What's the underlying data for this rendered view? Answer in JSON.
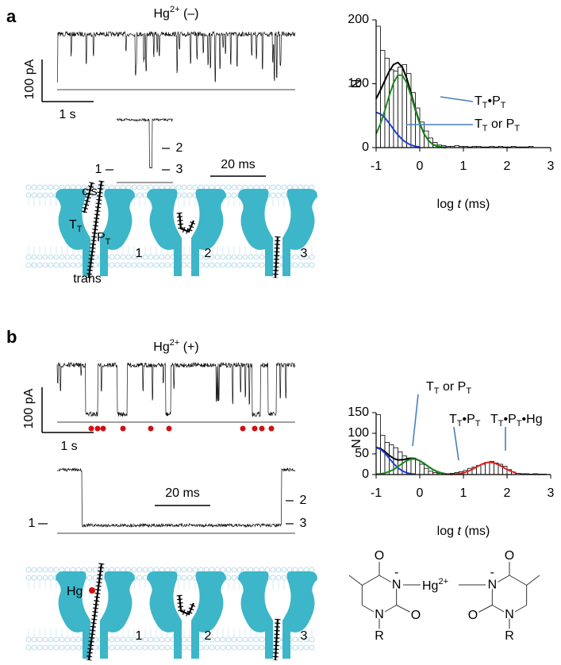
{
  "figure": {
    "panels": [
      {
        "label": "a",
        "title": {
          "parts": [
            "Hg",
            "2+",
            " (–)"
          ],
          "script": "sup"
        },
        "scale_current": "100 pA",
        "scale_time": "1 s",
        "zoom_scale": "20 ms",
        "levels": [
          "1",
          "2",
          "3"
        ],
        "pore_states": [
          "1",
          "2",
          "3"
        ],
        "cis": "cis",
        "trans": "trans",
        "tt": {
          "parts": [
            "T",
            "T"
          ],
          "script": "sub"
        },
        "pt": {
          "parts": [
            "P",
            "T"
          ],
          "script": "sub"
        }
      },
      {
        "label": "b",
        "title": {
          "parts": [
            "Hg",
            "2+",
            " (+)"
          ],
          "script": "sup"
        },
        "scale_current": "100 pA",
        "scale_time": "1 s",
        "zoom_scale": "20 ms",
        "levels": [
          "1",
          "2",
          "3"
        ],
        "pore_states": [
          "1",
          "2",
          "3"
        ],
        "hg": "Hg"
      }
    ],
    "chemical_structure": {
      "atoms": [
        "O",
        "N",
        "O",
        "N",
        "R",
        "O",
        "N",
        "O",
        "N",
        "R"
      ],
      "charges": [
        "-",
        "-"
      ],
      "metal": {
        "parts": [
          "Hg",
          "2+"
        ],
        "script": "sup"
      }
    }
  },
  "chart_data": [
    {
      "type": "histogram",
      "bins": [
        -1,
        -0.9,
        -0.8,
        -0.7,
        -0.6,
        -0.5,
        -0.4,
        -0.3,
        -0.2,
        -0.1,
        0,
        0.1,
        0.2,
        0.3,
        0.4,
        0.5,
        0.6,
        0.7,
        0.8,
        0.9,
        1,
        1.1,
        1.2,
        1.3,
        1.4,
        1.5,
        1.6,
        1.7,
        1.8,
        1.9,
        2,
        2.1,
        2.2,
        2.3,
        2.4,
        2.5,
        2.6
      ],
      "counts": [
        190,
        152,
        140,
        122,
        120,
        126,
        130,
        116,
        86,
        62,
        40,
        26,
        15,
        8,
        4,
        3,
        2,
        2,
        3,
        2,
        2,
        1,
        2,
        2,
        1,
        1,
        2,
        1,
        2,
        1,
        1,
        2,
        1,
        1,
        1,
        2
      ],
      "xlim": [
        -1,
        3
      ],
      "ylim": [
        0,
        200
      ],
      "xticks": [
        -1,
        0,
        1,
        2,
        3
      ],
      "yticks": [
        0,
        100,
        200
      ],
      "xlabel": {
        "parts": [
          "log ",
          "t",
          " (ms)"
        ],
        "script": "italic"
      },
      "ylabel": "N",
      "series": [
        {
          "color": "#000000",
          "x": [
            -1,
            -0.9,
            -0.8,
            -0.7,
            -0.6,
            -0.5,
            -0.4,
            -0.3,
            -0.2,
            -0.1,
            0,
            0.1,
            0.2,
            0.3,
            0.4,
            0.5,
            0.6
          ],
          "values": [
            76.4,
            90.1,
            104.9,
            119.4,
            130.1,
            133.2,
            126,
            108.9,
            85.3,
            60.2,
            38.2,
            21.4,
            11,
            5,
            2.1,
            0.8,
            0.2
          ]
        },
        {
          "color": "#1f3fd0",
          "x": [
            -1,
            -0.9,
            -0.8,
            -0.7,
            -0.6,
            -0.5,
            -0.4,
            -0.3,
            -0.2,
            -0.1,
            0
          ],
          "values": [
            55,
            52.8,
            46.7,
            38.1,
            28.6,
            19.8,
            12.6,
            7.4,
            4,
            2,
            0.9
          ]
        },
        {
          "color": "#1a8a1a",
          "x": [
            -1,
            -0.9,
            -0.8,
            -0.7,
            -0.6,
            -0.5,
            -0.4,
            -0.3,
            -0.2,
            -0.1,
            0,
            0.1,
            0.2,
            0.3,
            0.4,
            0.5,
            0.6
          ],
          "values": [
            21.4,
            37.3,
            58.2,
            81.3,
            101.5,
            113.4,
            113.4,
            101.5,
            81.3,
            58.2,
            37.3,
            21.4,
            11,
            5,
            2.1,
            0.8,
            0.2
          ]
        }
      ],
      "annotations": [
        {
          "parts": [
            "T",
            "T",
            "•P",
            "T"
          ],
          "script": "sub"
        },
        {
          "parts": [
            "T",
            "T",
            " or P",
            "T"
          ],
          "script": "sub"
        }
      ]
    },
    {
      "type": "histogram",
      "bins": [
        -1,
        -0.9,
        -0.8,
        -0.7,
        -0.6,
        -0.5,
        -0.4,
        -0.3,
        -0.2,
        -0.1,
        0,
        0.1,
        0.2,
        0.3,
        0.4,
        0.5,
        0.6,
        0.7,
        0.8,
        0.9,
        1,
        1.1,
        1.2,
        1.3,
        1.4,
        1.5,
        1.6,
        1.7,
        1.8,
        1.9,
        2,
        2.1,
        2.2,
        2.3,
        2.4,
        2.5,
        2.6,
        2.7,
        2.8,
        2.9
      ],
      "counts": [
        145,
        95,
        78,
        72,
        65,
        55,
        45,
        40,
        40,
        35,
        25,
        15,
        8,
        5,
        3,
        2,
        2,
        3,
        5,
        7,
        10,
        15,
        18,
        22,
        25,
        30,
        32,
        28,
        25,
        20,
        12,
        6,
        3,
        2,
        2,
        1,
        2,
        1,
        1
      ],
      "xlim": [
        -1,
        3
      ],
      "ylim": [
        0,
        150
      ],
      "xticks": [
        -1,
        0,
        1,
        2,
        3
      ],
      "yticks": [
        0,
        50,
        100,
        150
      ],
      "xlabel": {
        "parts": [
          "log ",
          "t",
          " (ms)"
        ],
        "script": "italic"
      },
      "ylabel": "N",
      "series": [
        {
          "color": "#000000",
          "x": [
            -1,
            -0.9,
            -0.8,
            -0.7,
            -0.6,
            -0.5,
            -0.4,
            -0.3,
            -0.2,
            -0.1,
            0,
            0.1,
            0.2,
            0.3,
            0.4,
            0.5,
            0.6
          ],
          "values": [
            65.7,
            63.2,
            55.7,
            46.5,
            39,
            35.4,
            35.7,
            37.8,
            39.3,
            38.2,
            33.5,
            26.9,
            19.2,
            12.3,
            7.1,
            3.6,
            1.7
          ]
        },
        {
          "color": "#1f3fd0",
          "x": [
            -1,
            -0.9,
            -0.8,
            -0.7,
            -0.6,
            -0.5,
            -0.4,
            -0.3,
            -0.2,
            -0.1
          ],
          "values": [
            65,
            61.5,
            52.1,
            39.4,
            26.7,
            16.2,
            8.8,
            4.3,
            1.8,
            0.7
          ]
        },
        {
          "color": "#1a8a1a",
          "x": [
            -1,
            -0.9,
            -0.8,
            -0.7,
            -0.6,
            -0.5,
            -0.4,
            -0.3,
            -0.2,
            -0.1,
            0,
            0.1,
            0.2,
            0.3,
            0.4,
            0.5,
            0.6
          ],
          "values": [
            0.7,
            1.7,
            3.6,
            7.1,
            12.3,
            19.2,
            26.9,
            33.5,
            37.5,
            37.5,
            33.5,
            26.9,
            19.2,
            12.3,
            7.1,
            3.6,
            1.7
          ]
        },
        {
          "color": "#e02020",
          "x": [
            0.7,
            0.8,
            0.9,
            1,
            1.1,
            1.2,
            1.3,
            1.4,
            1.5,
            1.6,
            1.7,
            1.8,
            1.9,
            2,
            2.1,
            2.2
          ],
          "values": [
            0.3,
            0.9,
            2,
            4.1,
            7.5,
            12.3,
            18.2,
            24,
            28.4,
            30,
            28.4,
            24,
            18.2,
            12.3,
            7.5,
            4.1
          ]
        }
      ],
      "annotations": [
        {
          "parts": [
            "T",
            "T",
            " or P",
            "T"
          ],
          "script": "sub"
        },
        {
          "parts": [
            "T",
            "T",
            "•P",
            "T"
          ],
          "script": "sub"
        },
        {
          "parts": [
            "T",
            "T",
            "•P",
            "T",
            "•Hg"
          ],
          "script": "sub"
        }
      ]
    }
  ]
}
